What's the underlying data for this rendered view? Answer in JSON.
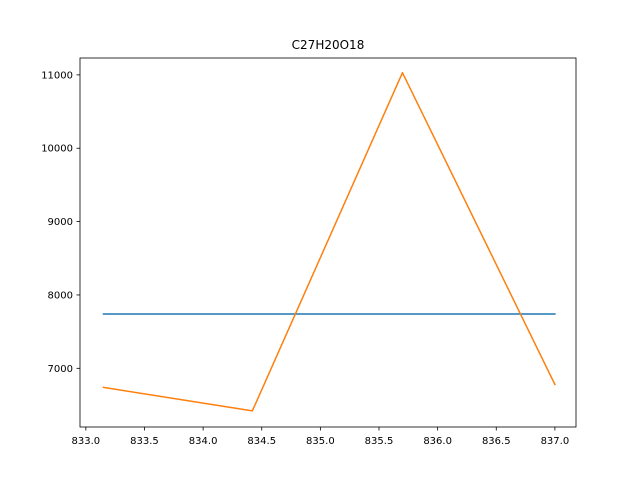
{
  "chart_data": {
    "type": "line",
    "title": "C27H20O18",
    "xlabel": "",
    "ylabel": "",
    "xlim": [
      832.95,
      837.18
    ],
    "ylim": [
      6200,
      11230
    ],
    "grid": false,
    "xticks": [
      833.0,
      833.5,
      834.0,
      834.5,
      835.0,
      835.5,
      836.0,
      836.5,
      837.0
    ],
    "xtick_labels": [
      "833.0",
      "833.5",
      "834.0",
      "834.5",
      "835.0",
      "835.5",
      "836.0",
      "836.5",
      "837.0"
    ],
    "yticks": [
      7000,
      8000,
      9000,
      10000,
      11000
    ],
    "ytick_labels": [
      "7000",
      "8000",
      "9000",
      "10000",
      "11000"
    ],
    "series": [
      {
        "color": "#1f77b4",
        "x": [
          833.15,
          837.0
        ],
        "y": [
          7740,
          7740
        ]
      },
      {
        "color": "#ff7f0e",
        "x": [
          833.15,
          834.42,
          835.7,
          837.0
        ],
        "y": [
          6740,
          6420,
          11030,
          6780
        ]
      }
    ]
  }
}
